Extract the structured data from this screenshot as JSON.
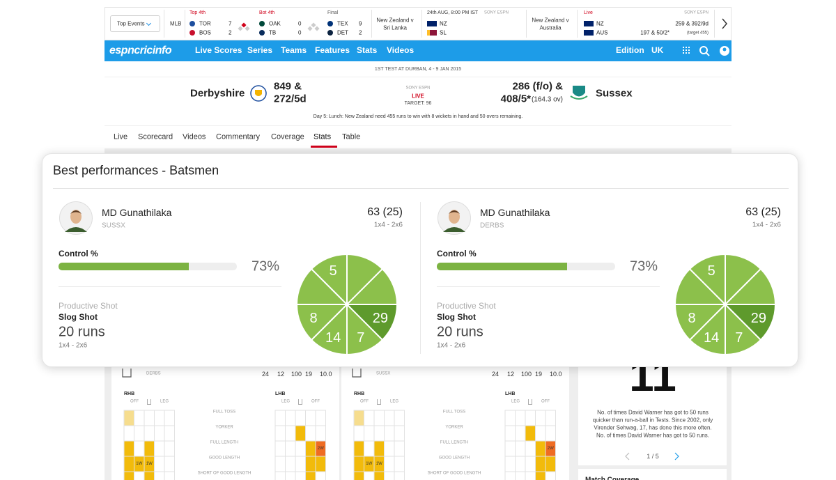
{
  "scorebar": {
    "dropdown": "Top Events",
    "league": "MLB",
    "games": [
      {
        "status": "Top 4th",
        "teams": [
          {
            "name": "TOR",
            "score": "7"
          },
          {
            "name": "BOS",
            "score": "2"
          }
        ]
      },
      {
        "status": "Bot 4th",
        "teams": [
          {
            "name": "OAK",
            "score": "0"
          },
          {
            "name": "TB",
            "score": "0"
          }
        ]
      },
      {
        "status": "Final",
        "teams": [
          {
            "name": "TEX",
            "score": "9"
          },
          {
            "name": "DET",
            "score": "2"
          }
        ]
      }
    ],
    "fixtures": [
      {
        "title": [
          "New Zealand v",
          "Sri Lanka"
        ],
        "time": "24th AUG, 8:00 PM IST",
        "broadcaster": "SONY ESPN",
        "teams": [
          "NZ",
          "SL"
        ]
      },
      {
        "title": [
          "New Zealand v",
          "Australia"
        ],
        "status": "Live",
        "broadcaster": "SONY ESPN",
        "teams": [
          {
            "name": "NZ",
            "score": "259 & 392/9d"
          },
          {
            "name": "AUS",
            "score": "197 & 50/2*",
            "note": "(target 455)"
          }
        ]
      }
    ]
  },
  "nav": {
    "logo": "espncricinfo",
    "links": [
      "Live Scores",
      "Series",
      "Teams",
      "Features",
      "Stats",
      "Videos"
    ],
    "edition": "Edition",
    "edition_value": "UK"
  },
  "match": {
    "subtitle": "1ST TEST AT DURBAN, 4 - 9 JAN 2015",
    "team1": {
      "name": "Derbyshire",
      "score": [
        "849 &",
        "272/5d"
      ]
    },
    "team2": {
      "name": "Sussex",
      "score": [
        "286 (f/o) &",
        "408/5*"
      ],
      "overs": "(164.3 ov)"
    },
    "broadcaster": "SONY ESPN",
    "live": "LIVE",
    "target": "TARGET: 96",
    "status": "Day 5: Lunch: New Zealand need 455 runs to win with 8 wickets in hand and 50 overs remaining."
  },
  "tabs": [
    "Live",
    "Scorecard",
    "Videos",
    "Commentary",
    "Coverage",
    "Stats",
    "Table"
  ],
  "card": {
    "title": "Best performances - Batsmen",
    "players": [
      {
        "name": "MD Gunathilaka",
        "team": "SUSSX",
        "score": "63 (25)",
        "detail": "1x4 - 2x6",
        "control_title": "Control %",
        "control_value": 73,
        "control_label": "73%",
        "shot_title": "Productive Shot",
        "shot": "Slog Shot",
        "runs": "20 runs",
        "runs_detail": "1x4 - 2x6",
        "wheel": {
          "labels": [
            null,
            null,
            "29",
            "7",
            "14",
            "8",
            null,
            "5"
          ],
          "colors": [
            "#8cc04b",
            "#8cc04b",
            "#5e9a2c",
            "#8cc04b",
            "#8cc04b",
            "#8cc04b",
            "#8cc04b",
            "#8cc04b"
          ]
        }
      },
      {
        "name": "MD Gunathilaka",
        "team": "DERBS",
        "score": "63 (25)",
        "detail": "1x4 - 2x6",
        "control_title": "Control %",
        "control_value": 73,
        "control_label": "73%",
        "shot_title": "Productive Shot",
        "shot": "Slog Shot",
        "runs": "20 runs",
        "runs_detail": "1x4 - 2x6",
        "wheel": {
          "labels": [
            null,
            null,
            "29",
            "7",
            "14",
            "8",
            null,
            "5"
          ],
          "colors": [
            "#8cc04b",
            "#8cc04b",
            "#5e9a2c",
            "#8cc04b",
            "#8cc04b",
            "#8cc04b",
            "#8cc04b",
            "#8cc04b"
          ]
        }
      }
    ]
  },
  "heatmaps": {
    "lengths": [
      "FULL TOSS",
      "YORKER",
      "FULL LENGTH",
      "GOOD LENGTH",
      "SHORT OF GOOD LENGTH"
    ],
    "panels": [
      {
        "team": "DERBS",
        "stats": [
          "24",
          "12",
          "100",
          "19",
          "10.0"
        ],
        "rhb": {
          "title": "RHB",
          "left": "OFF",
          "right": "LEG",
          "cells": [
            "1W",
            "1W"
          ]
        },
        "lhb": {
          "title": "LHB",
          "left": "LEG",
          "right": "OFF",
          "cells": [
            "2W"
          ]
        }
      },
      {
        "team": "SUSSX",
        "stats": [
          "24",
          "12",
          "100",
          "19",
          "10.0"
        ],
        "rhb": {
          "title": "RHB",
          "left": "OFF",
          "right": "LEG",
          "cells": [
            "1W",
            "1W"
          ]
        },
        "lhb": {
          "title": "LHB",
          "left": "LEG",
          "right": "OFF",
          "cells": [
            "2W"
          ]
        }
      }
    ]
  },
  "sidebar": {
    "big_number": "11",
    "text": [
      "No. of times David Warner has got to 50 runs",
      "quicker than run-a-ball in Tests. Since 2002, only",
      "Virender Sehwag, 17, has done this more often.",
      "No. of times David Warner has got to 50 runs."
    ],
    "pager": "1 / 5",
    "next_title": "Match Coverage"
  }
}
